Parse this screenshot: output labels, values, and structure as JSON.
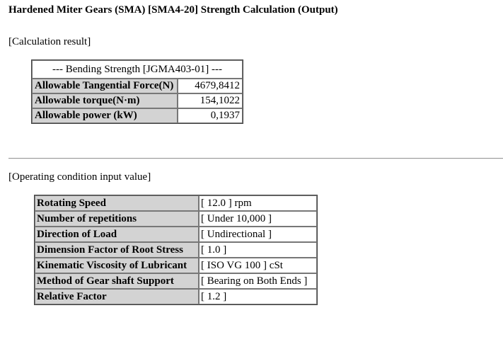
{
  "title": "Hardened Miter Gears (SMA) [SMA4-20] Strength Calculation (Output)",
  "calculation_result": {
    "section_label": "[Calculation result]",
    "table_header": "--- Bending Strength [JGMA403-01] ---",
    "rows": [
      {
        "label": "Allowable Tangential Force(N)",
        "value": "4679,8412"
      },
      {
        "label": "Allowable torque(N·m)",
        "value": "154,1022"
      },
      {
        "label": "Allowable power (kW)",
        "value": "0,1937"
      }
    ]
  },
  "operating_conditions": {
    "section_label": "[Operating condition input value]",
    "rows": [
      {
        "label": "Rotating Speed",
        "value": "[ 12.0 ] rpm"
      },
      {
        "label": "Number of repetitions",
        "value": "[ Under 10,000 ]"
      },
      {
        "label": "Direction of Load",
        "value": "[ Undirectional ]"
      },
      {
        "label": "Dimension Factor of Root Stress",
        "value": "[ 1.0 ]"
      },
      {
        "label": "Kinematic Viscosity of Lubricant",
        "value": "[ ISO VG 100 ] cSt"
      },
      {
        "label": "Method of Gear shaft Support",
        "value": "[ Bearing on Both Ends ]"
      },
      {
        "label": "Relative Factor",
        "value": "[ 1.2 ]"
      }
    ]
  }
}
